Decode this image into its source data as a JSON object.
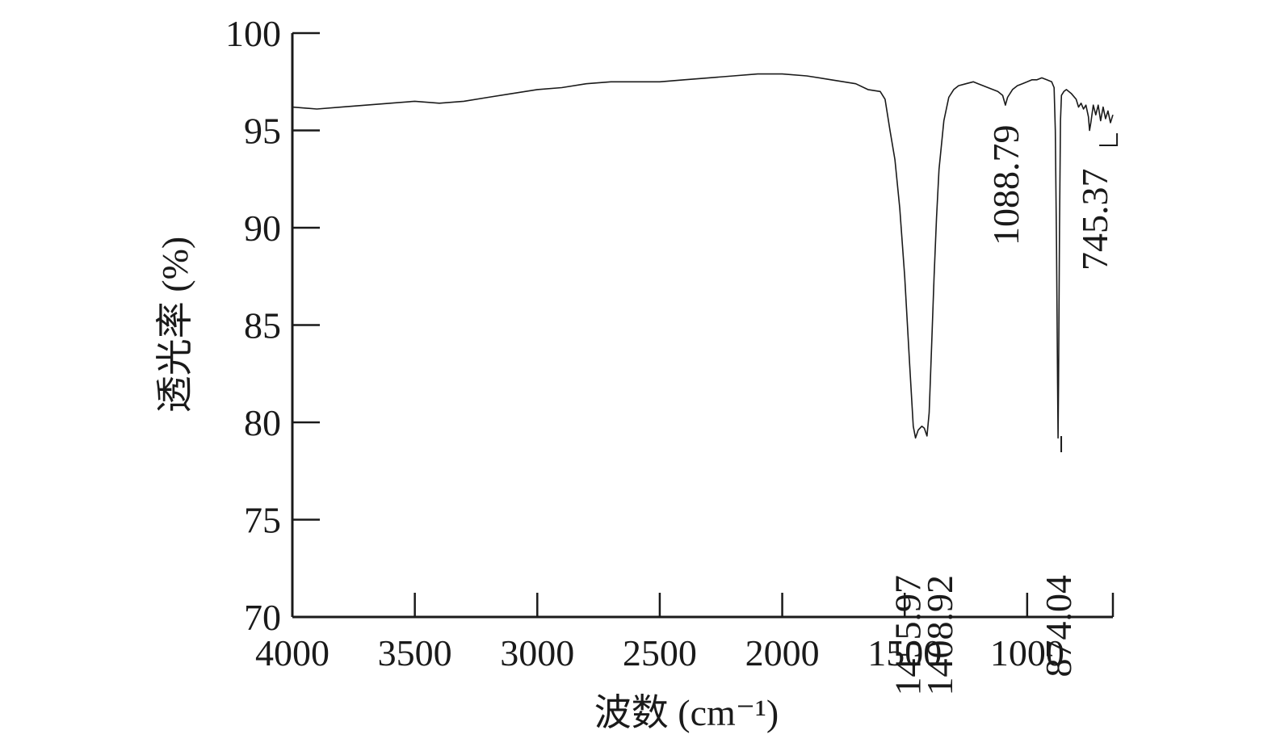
{
  "chart_data": {
    "type": "line",
    "xlabel": "波数 (cm⁻¹)",
    "ylabel": "透光率 (%)",
    "xlim": [
      4000,
      650
    ],
    "ylim": [
      70,
      100
    ],
    "x_reversed": true,
    "grid": false,
    "x_ticks": [
      4000,
      3500,
      3000,
      2500,
      2000,
      1500,
      1000
    ],
    "x_tick_labels": [
      "4000",
      "3500",
      "3000",
      "2500",
      "2000",
      "1500",
      "1000"
    ],
    "y_ticks": [
      70,
      75,
      80,
      85,
      90,
      95,
      100
    ],
    "y_tick_labels": [
      "70",
      "75",
      "80",
      "85",
      "90",
      "95",
      "100"
    ],
    "series": [
      {
        "color": "#1a1a1a",
        "x": [
          4000,
          3900,
          3800,
          3700,
          3600,
          3500,
          3400,
          3300,
          3200,
          3100,
          3000,
          2900,
          2800,
          2700,
          2600,
          2500,
          2400,
          2300,
          2200,
          2100,
          2000,
          1900,
          1800,
          1700,
          1650,
          1600,
          1580,
          1560,
          1540,
          1520,
          1500,
          1480,
          1465,
          1455.97,
          1445,
          1430,
          1420,
          1408.92,
          1400,
          1390,
          1380,
          1370,
          1360,
          1340,
          1320,
          1300,
          1280,
          1250,
          1220,
          1200,
          1180,
          1160,
          1140,
          1120,
          1100,
          1088.79,
          1080,
          1060,
          1040,
          1020,
          1000,
          980,
          960,
          940,
          920,
          900,
          890,
          885,
          880,
          876,
          874.04,
          872,
          868,
          864,
          860,
          850,
          840,
          820,
          800,
          790,
          780,
          770,
          760,
          750,
          745.37,
          740,
          730,
          720,
          710,
          700,
          690,
          680,
          670,
          660,
          650
        ],
        "y": [
          96.2,
          96.1,
          96.2,
          96.3,
          96.4,
          96.5,
          96.4,
          96.5,
          96.7,
          96.9,
          97.1,
          97.2,
          97.4,
          97.5,
          97.5,
          97.5,
          97.6,
          97.7,
          97.8,
          97.9,
          97.9,
          97.8,
          97.6,
          97.4,
          97.1,
          97.0,
          96.6,
          95.0,
          93.5,
          91.0,
          87.5,
          83.0,
          79.8,
          79.2,
          79.6,
          79.8,
          79.7,
          79.3,
          80.5,
          84.0,
          87.5,
          90.5,
          93.0,
          95.5,
          96.7,
          97.1,
          97.3,
          97.4,
          97.5,
          97.4,
          97.3,
          97.2,
          97.1,
          97.0,
          96.8,
          96.3,
          96.7,
          97.1,
          97.3,
          97.4,
          97.5,
          97.6,
          97.6,
          97.7,
          97.6,
          97.5,
          97.2,
          95.0,
          89.0,
          82.0,
          79.2,
          82.0,
          90.0,
          95.5,
          96.8,
          97.0,
          97.1,
          96.9,
          96.6,
          96.2,
          96.4,
          96.1,
          96.3,
          95.7,
          95.0,
          95.4,
          96.3,
          95.8,
          96.3,
          95.5,
          96.2,
          95.6,
          96.0,
          95.4,
          95.8
        ]
      }
    ],
    "annotations": [
      {
        "text": "1455.97",
        "x": 1455.97,
        "position": "below-peak"
      },
      {
        "text": "1408.92",
        "x": 1408.92,
        "position": "below-peak"
      },
      {
        "text": "1088.79",
        "x": 1088.79,
        "position": "above"
      },
      {
        "text": "874.04",
        "x": 874.04,
        "position": "below-peak"
      },
      {
        "text": "745.37",
        "x": 745.37,
        "position": "above"
      }
    ]
  }
}
